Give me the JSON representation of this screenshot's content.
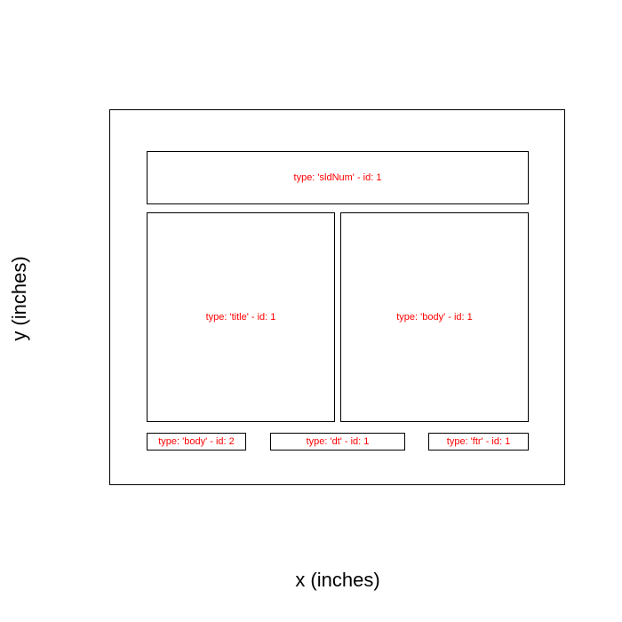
{
  "axes": {
    "xlabel": "x (inches)",
    "ylabel": "y (inches)"
  },
  "placeholders": [
    {
      "name": "placeholder-sldnum",
      "label": "type: 'sldNum' - id: 1"
    },
    {
      "name": "placeholder-title",
      "label": "type: 'title' - id: 1"
    },
    {
      "name": "placeholder-body-1",
      "label": "type: 'body' - id: 1"
    },
    {
      "name": "placeholder-body-2",
      "label": "type: 'body' - id: 2"
    },
    {
      "name": "placeholder-dt",
      "label": "type: 'dt' - id: 1"
    },
    {
      "name": "placeholder-ftr",
      "label": "type: 'ftr' - id: 1"
    }
  ],
  "colors": {
    "label": "#ff0000",
    "stroke": "#000000"
  }
}
